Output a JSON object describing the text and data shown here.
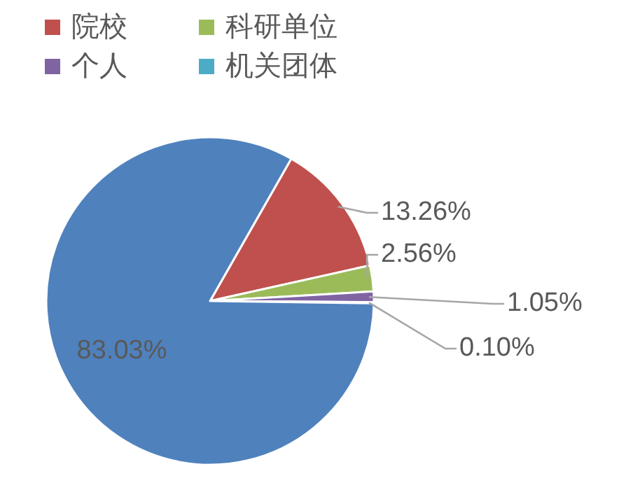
{
  "chart_data": {
    "type": "pie",
    "categories": [
      "院校",
      "科研单位",
      "个人",
      "机关团体",
      null
    ],
    "values": [
      13.26,
      2.56,
      1.05,
      0.1,
      83.03
    ],
    "colors": [
      "#c0504d",
      "#9bbb59",
      "#8064a2",
      "#4bacc6",
      "#4f81bd"
    ],
    "value_labels": [
      "13.26%",
      "2.56%",
      "1.05%",
      "0.10%",
      "83.03%"
    ],
    "legend": "top left"
  }
}
